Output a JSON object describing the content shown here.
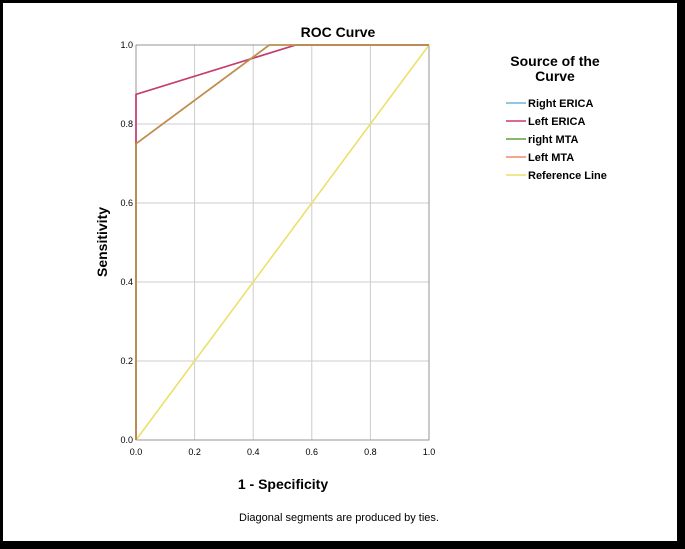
{
  "chart_data": {
    "type": "line",
    "title": "ROC Curve",
    "xlabel": "1 - Specificity",
    "ylabel": "Sensitivity",
    "xlim": [
      0.0,
      1.0
    ],
    "ylim": [
      0.0,
      1.0
    ],
    "xticks": [
      "0.0",
      "0.2",
      "0.4",
      "0.6",
      "0.8",
      "1.0"
    ],
    "yticks": [
      "0.0",
      "0.2",
      "0.4",
      "0.6",
      "0.8",
      "1.0"
    ],
    "grid": true,
    "legend_title": "Source of the Curve",
    "legend_position": "right",
    "series": [
      {
        "name": "Right ERICA",
        "color": "#6fb3d8",
        "x": [
          0,
          0,
          0.545,
          1
        ],
        "y": [
          0,
          0.875,
          1,
          1
        ]
      },
      {
        "name": "Left ERICA",
        "color": "#d0396a",
        "x": [
          0,
          0,
          0.545,
          1
        ],
        "y": [
          0,
          0.875,
          1,
          1
        ]
      },
      {
        "name": "right MTA",
        "color": "#5ba33a",
        "x": [
          0,
          0,
          0.455,
          1
        ],
        "y": [
          0,
          0.75,
          1,
          1
        ]
      },
      {
        "name": "Left MTA",
        "color": "#f08a6c",
        "x": [
          0,
          0,
          0.455,
          1
        ],
        "y": [
          0,
          0.75,
          1,
          1
        ]
      },
      {
        "name": "Reference Line",
        "color": "#ece06a",
        "x": [
          0,
          1
        ],
        "y": [
          0,
          1
        ]
      }
    ],
    "draw_order": [
      "Reference Line",
      "Right ERICA",
      "Left ERICA",
      "right MTA",
      "Left MTA"
    ],
    "overlay_color_mta": "#c98a4e",
    "footnote": "Diagonal segments are produced by ties."
  }
}
